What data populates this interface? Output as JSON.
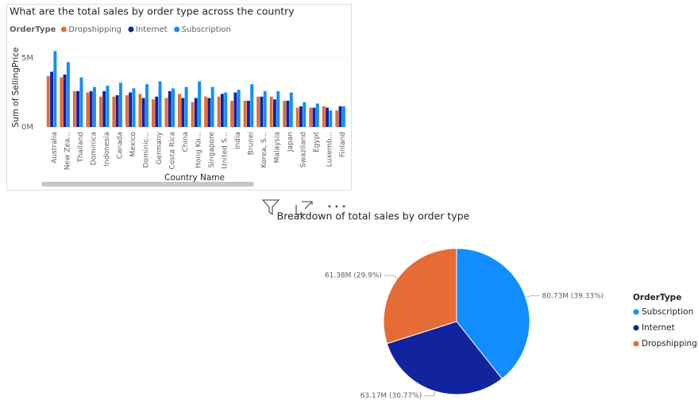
{
  "chart_data": [
    {
      "type": "bar",
      "title": "What are the total sales by order type across the country",
      "legend_title": "OrderType",
      "xlabel": "Country Name",
      "ylabel": "Sum of SellingPrice",
      "categories": [
        "Australia",
        "New Zea...",
        "Thailand",
        "Dominica",
        "Indonesia",
        "Canada",
        "Mexico",
        "Dominic...",
        "Germany",
        "Costa Rica",
        "China",
        "Hong Ko...",
        "Singapore",
        "United S...",
        "India",
        "Brunei",
        "Korea, S...",
        "Malaysia",
        "Japan",
        "Swaziland",
        "Egypt",
        "Luxemb...",
        "Finland"
      ],
      "series": [
        {
          "name": "Dropshipping",
          "color": "#e66c37",
          "values": [
            3.7,
            3.6,
            2.6,
            2.5,
            2.2,
            2.2,
            2.3,
            2.4,
            2.0,
            2.1,
            2.4,
            1.8,
            2.2,
            2.2,
            1.9,
            1.9,
            2.2,
            2.2,
            1.9,
            1.4,
            1.4,
            1.5,
            1.2
          ]
        },
        {
          "name": "Internet",
          "color": "#12239e",
          "values": [
            4.0,
            3.8,
            2.6,
            2.6,
            2.6,
            2.3,
            2.5,
            2.1,
            2.2,
            2.6,
            2.1,
            2.1,
            2.1,
            2.4,
            2.5,
            1.9,
            2.2,
            2.0,
            1.9,
            1.5,
            1.4,
            1.4,
            1.5
          ]
        },
        {
          "name": "Subscription",
          "color": "#118dff",
          "values": [
            5.5,
            4.7,
            3.6,
            2.9,
            3.0,
            3.2,
            2.8,
            3.1,
            3.3,
            2.8,
            2.9,
            3.3,
            2.9,
            2.5,
            2.7,
            3.1,
            2.6,
            2.6,
            2.5,
            1.8,
            1.7,
            1.2,
            1.5
          ]
        }
      ],
      "ylim": [
        0,
        5.75
      ],
      "yticks": [
        {
          "value": 0,
          "label": "0M"
        },
        {
          "value": 5,
          "label": "5M"
        }
      ],
      "grid": true
    },
    {
      "type": "pie",
      "title": "Breakdown of total sales by order type",
      "legend_title": "OrderType",
      "categories": [
        "Subscription",
        "Internet",
        "Dropshipping"
      ],
      "values": [
        80.73,
        63.17,
        61.38
      ],
      "value_labels": [
        "80.73M (39.33%)",
        "63.17M (30.77%)",
        "61.38M (29.9%)"
      ],
      "colors": [
        "#118dff",
        "#12239e",
        "#e66c37"
      ]
    }
  ]
}
